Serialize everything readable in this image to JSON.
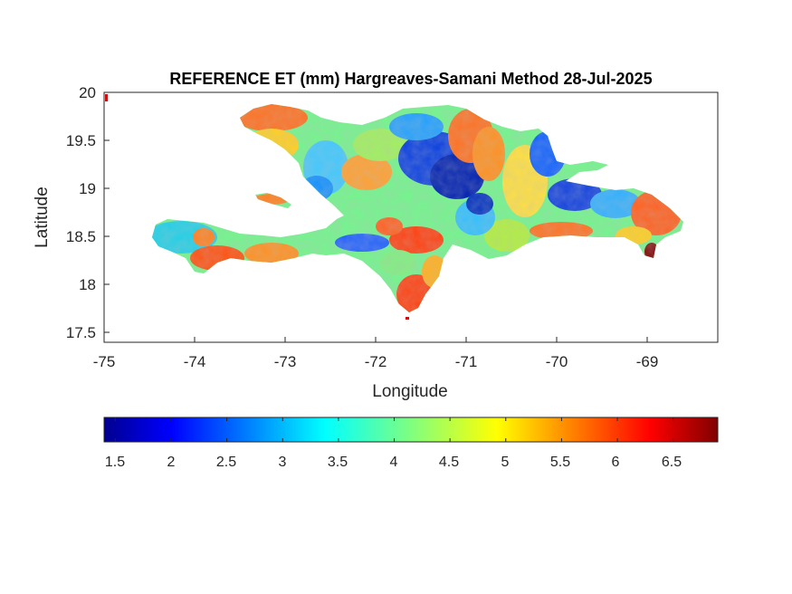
{
  "title": "REFERENCE ET (mm) Hargreaves-Samani Method  28-Jul-2025",
  "axes": {
    "xlabel": "Longitude",
    "ylabel": "Latitude",
    "xlim": [
      -75,
      -68.2
    ],
    "ylim": [
      17.4,
      20
    ],
    "xticks": [
      "-75",
      "-74",
      "-73",
      "-72",
      "-71",
      "-70",
      "-69"
    ],
    "yticks": [
      "20",
      "19.5",
      "19",
      "18.5",
      "18",
      "17.5"
    ]
  },
  "colorbar": {
    "colormap": "jet",
    "range": [
      1.4,
      6.9
    ],
    "ticks": [
      "1.5",
      "2",
      "2.5",
      "3",
      "3.5",
      "4",
      "4.5",
      "5",
      "5.5",
      "6",
      "6.5"
    ]
  },
  "colors": {
    "low": "#00008f",
    "mid": "#7fff7f",
    "high": "#800000"
  }
}
